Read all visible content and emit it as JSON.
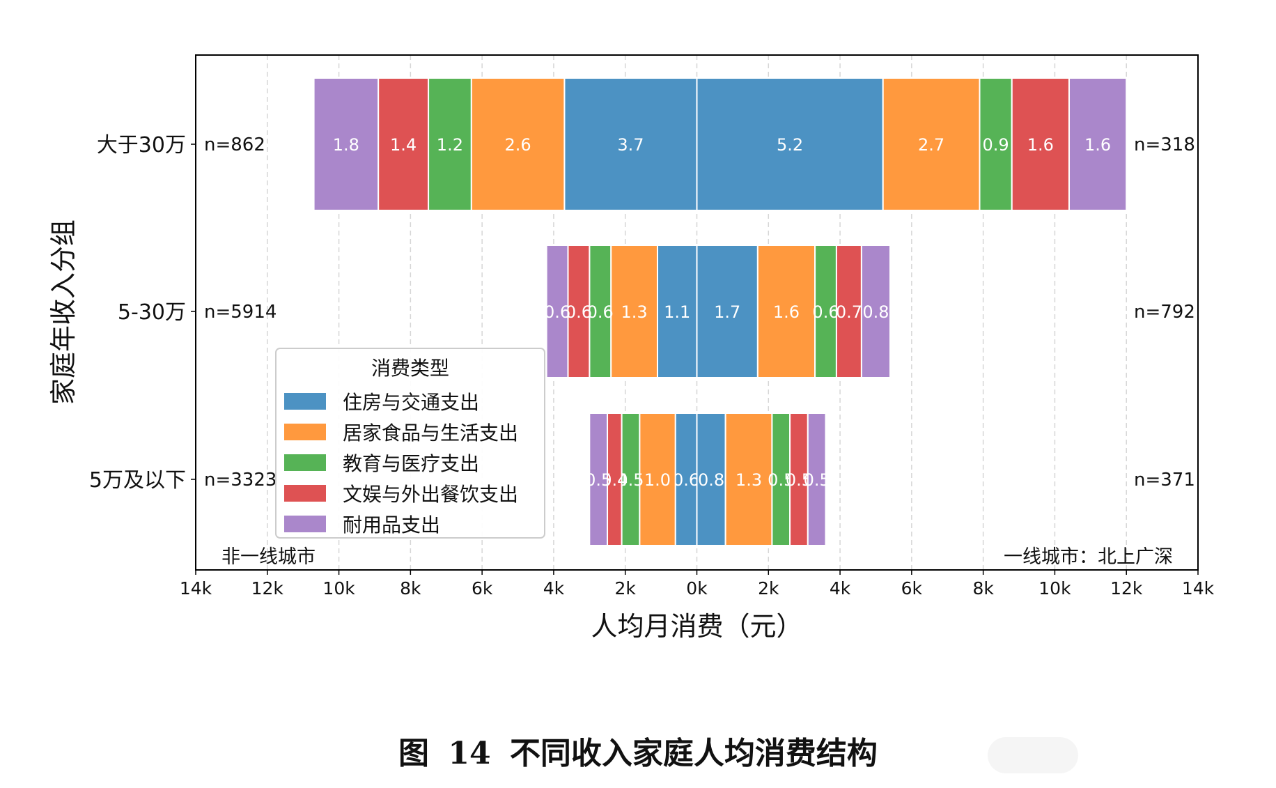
{
  "chart_data": {
    "type": "bar",
    "orientation": "horizontal-stacked-diverging",
    "xlabel": "人均月消费（元）",
    "ylabel": "家庭年收入分组",
    "xlim": [
      -14,
      14
    ],
    "x_ticks": [
      -14,
      -12,
      -10,
      -8,
      -6,
      -4,
      -2,
      0,
      2,
      4,
      6,
      8,
      10,
      12,
      14
    ],
    "x_tick_labels": [
      "14k",
      "12k",
      "10k",
      "8k",
      "6k",
      "4k",
      "2k",
      "0k",
      "2k",
      "4k",
      "6k",
      "8k",
      "10k",
      "12k",
      "14k"
    ],
    "grid": "vertical dashed",
    "categories": [
      "大于30万",
      "5-30万",
      "5万及以下"
    ],
    "left_group_label": "非一线城市",
    "right_group_label": "一线城市：北上广深",
    "left_n": [
      "n=862",
      "n=5914",
      "n=3323"
    ],
    "right_n": [
      "n=318",
      "n=792",
      "n=371"
    ],
    "legend": {
      "title": "消费类型",
      "position": "center-left",
      "entries": [
        "住房与交通支出",
        "居家食品与生活支出",
        "教育与医疗支出",
        "文娱与外出餐饮支出",
        "耐用品支出"
      ]
    },
    "colors": [
      "#4c92c3",
      "#ff993e",
      "#56b356",
      "#de5253",
      "#aa87cb"
    ],
    "series": [
      {
        "name": "住房与交通支出",
        "left": [
          3.7,
          1.1,
          0.6
        ],
        "right": [
          5.2,
          1.7,
          0.8
        ]
      },
      {
        "name": "居家食品与生活支出",
        "left": [
          2.6,
          1.3,
          1.0
        ],
        "right": [
          2.7,
          1.6,
          1.3
        ]
      },
      {
        "name": "教育与医疗支出",
        "left": [
          1.2,
          0.6,
          0.5
        ],
        "right": [
          0.9,
          0.6,
          0.5
        ]
      },
      {
        "name": "文娱与外出餐饮支出",
        "left": [
          1.4,
          0.6,
          0.4
        ],
        "right": [
          1.6,
          0.7,
          0.5
        ]
      },
      {
        "name": "耐用品支出",
        "left": [
          1.8,
          0.6,
          0.5
        ],
        "right": [
          1.6,
          0.8,
          0.5
        ]
      }
    ],
    "value_unit": "k元"
  },
  "caption": {
    "prefix": "图",
    "number": "14",
    "text": "不同收入家庭人均消费结构"
  }
}
